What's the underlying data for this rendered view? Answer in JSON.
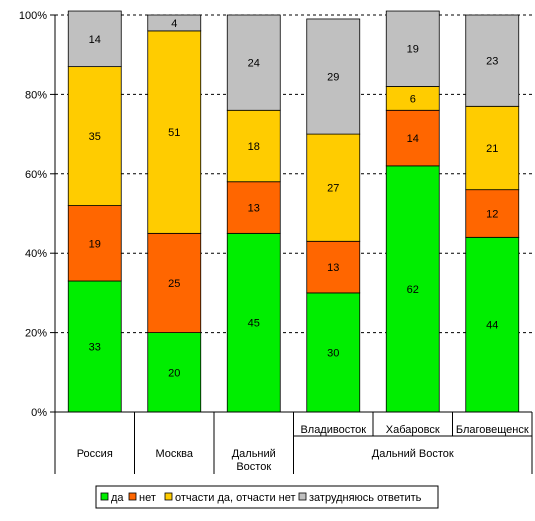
{
  "chart_data": {
    "type": "bar",
    "stacked": true,
    "normalized": true,
    "title": "",
    "xlabel": "",
    "ylabel": "",
    "ylim": [
      0,
      100
    ],
    "yticks": [
      "0%",
      "20%",
      "40%",
      "60%",
      "80%",
      "100%"
    ],
    "grid": "horizontal dashed",
    "legend_position": "bottom",
    "categories": [
      "Россия",
      "Москва",
      "Дальний Восток",
      "Владивосток",
      "Хабаровск",
      "Благовещенск"
    ],
    "category_lines": [
      [
        "Россия"
      ],
      [
        "Москва"
      ],
      [
        "Дальний",
        "Восток"
      ],
      [
        "Владивосток"
      ],
      [
        "Хабаровск"
      ],
      [
        "Благовещенск"
      ]
    ],
    "group_label": "Дальний Восток",
    "series": [
      {
        "name": "да",
        "color": "#00ee00",
        "values": [
          33,
          20,
          45,
          30,
          62,
          44
        ]
      },
      {
        "name": "нет",
        "color": "#ff6600",
        "values": [
          19,
          25,
          13,
          13,
          14,
          12
        ]
      },
      {
        "name": "отчасти да, отчасти нет",
        "color": "#ffcc00",
        "values": [
          35,
          51,
          18,
          27,
          6,
          21
        ]
      },
      {
        "name": "затрудняюсь ответить",
        "color": "#c0c0c0",
        "values": [
          14,
          4,
          24,
          29,
          19,
          23
        ]
      }
    ]
  }
}
